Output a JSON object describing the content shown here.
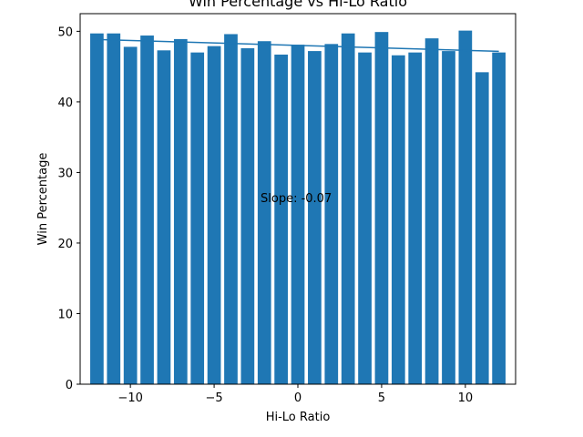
{
  "chart_data": {
    "type": "bar",
    "title": "Win Percentage vs Hi-Lo Ratio",
    "xlabel": "Hi-Lo Ratio",
    "ylabel": "Win Percentage",
    "x": [
      -12,
      -11,
      -10,
      -9,
      -8,
      -7,
      -6,
      -5,
      -4,
      -3,
      -2,
      -1,
      0,
      1,
      2,
      3,
      4,
      5,
      6,
      7,
      8,
      9,
      10,
      11,
      12
    ],
    "values": [
      49.7,
      49.7,
      47.8,
      49.4,
      47.3,
      48.9,
      47.0,
      47.9,
      49.6,
      47.6,
      48.6,
      46.7,
      48.1,
      47.2,
      48.2,
      49.7,
      47.0,
      49.9,
      46.6,
      47.0,
      49.0,
      47.2,
      50.1,
      44.2,
      47.0
    ],
    "trendline": {
      "slope": -0.07,
      "intercept": 48.0
    },
    "annotation": "Slope: -0.07",
    "xlim": [
      -13.0,
      13.0
    ],
    "ylim": [
      0,
      52.5
    ],
    "xticks": [
      -10,
      -5,
      0,
      5,
      10
    ],
    "xtick_labels": [
      "−10",
      "−5",
      "0",
      "5",
      "10"
    ],
    "yticks": [
      0,
      10,
      20,
      30,
      40,
      50
    ],
    "ytick_labels": [
      "0",
      "10",
      "20",
      "30",
      "40",
      "50"
    ],
    "bar_color": "#1f77b4",
    "line_color": "#1f77b4",
    "grid": false
  }
}
